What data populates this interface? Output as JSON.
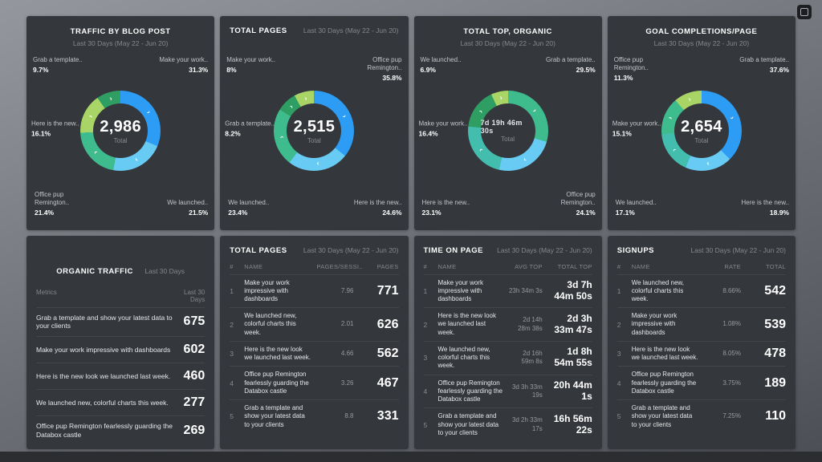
{
  "chart_data": [
    {
      "type": "pie",
      "title": "TRAFFIC BY BLOG POST",
      "subtitle": "Last 30 Days (May 22 - Jun 20)",
      "center": {
        "value": "2,986",
        "label": "Total"
      },
      "slices": [
        {
          "label": "Make your work..",
          "pct": 31.3,
          "color": "#2d9cf4"
        },
        {
          "label": "We launched..",
          "pct": 21.5,
          "color": "#68cbf3"
        },
        {
          "label": "Office pup Remington..",
          "pct": 21.4,
          "color": "#3fbc8e"
        },
        {
          "label": "Here is the new..",
          "pct": 16.1,
          "color": "#a8d566"
        },
        {
          "label": "Grab a template..",
          "pct": 9.7,
          "color": "#2f9e62"
        }
      ],
      "callouts": {
        "tl": {
          "name": "Grab a template..",
          "pct": "9.7%"
        },
        "tr": {
          "name": "Make your work..",
          "pct": "31.3%"
        },
        "l": {
          "name": "Here is the new..",
          "pct": "16.1%"
        },
        "bl": {
          "name": "Office pup Remington..",
          "pct": "21.4%"
        },
        "br": {
          "name": "We launched..",
          "pct": "21.5%"
        }
      }
    },
    {
      "type": "pie",
      "title": "TOTAL PAGES",
      "subtitle": "Last 30 Days (May 22 - Jun 20)",
      "center": {
        "value": "2,515",
        "label": "Total"
      },
      "slices": [
        {
          "label": "Office pup Remington..",
          "pct": 35.8,
          "color": "#2d9cf4"
        },
        {
          "label": "Here is the new..",
          "pct": 24.6,
          "color": "#68cbf3"
        },
        {
          "label": "We launched..",
          "pct": 23.4,
          "color": "#3fbc8e"
        },
        {
          "label": "Grab a template..",
          "pct": 8.2,
          "color": "#2f9e62"
        },
        {
          "label": "Make your work..",
          "pct": 8,
          "color": "#a8d566"
        }
      ],
      "callouts": {
        "tl": {
          "name": "Make your work..",
          "pct": "8%"
        },
        "tr": {
          "name": "Office pup Remington..",
          "pct": "35.8%"
        },
        "l": {
          "name": "Grab a template..",
          "pct": "8.2%"
        },
        "bl": {
          "name": "We launched..",
          "pct": "23.4%"
        },
        "br": {
          "name": "Here is the new..",
          "pct": "24.6%"
        }
      }
    },
    {
      "type": "pie",
      "title": "TOTAL TOP, ORGANIC",
      "subtitle": "Last 30 Days (May 22 - Jun 20)",
      "center": {
        "value": "7d 19h 46m 30s",
        "label": "Total"
      },
      "slices": [
        {
          "label": "Grab a template..",
          "pct": 29.5,
          "color": "#3fbc8e"
        },
        {
          "label": "Office pup Remington..",
          "pct": 24.1,
          "color": "#68cbf3"
        },
        {
          "label": "Here is the new..",
          "pct": 23.1,
          "color": "#43bdae"
        },
        {
          "label": "Make your work..",
          "pct": 16.4,
          "color": "#2f9e62"
        },
        {
          "label": "We launched..",
          "pct": 6.9,
          "color": "#a8d566"
        }
      ],
      "callouts": {
        "tl": {
          "name": "We launched..",
          "pct": "6.9%"
        },
        "tr": {
          "name": "Grab a template..",
          "pct": "29.5%"
        },
        "l": {
          "name": "Make your work..",
          "pct": "16.4%"
        },
        "bl": {
          "name": "Here is the new..",
          "pct": "23.1%"
        },
        "br": {
          "name": "Office pup Remington..",
          "pct": "24.1%"
        }
      }
    },
    {
      "type": "pie",
      "title": "GOAL COMPLETIONS/PAGE",
      "subtitle": "Last 30 Days (May 22 - Jun 20)",
      "center": {
        "value": "2,654",
        "label": "Total"
      },
      "slices": [
        {
          "label": "Grab a template..",
          "pct": 37.6,
          "color": "#2d9cf4"
        },
        {
          "label": "Here is the new..",
          "pct": 18.9,
          "color": "#68cbf3"
        },
        {
          "label": "We launched..",
          "pct": 17.1,
          "color": "#43bdae"
        },
        {
          "label": "Make your work..",
          "pct": 15.1,
          "color": "#3fbc8e"
        },
        {
          "label": "Office pup Remington..",
          "pct": 11.3,
          "color": "#a8d566"
        }
      ],
      "callouts": {
        "tl": {
          "name": "Office pup Remington..",
          "pct": "11.3%"
        },
        "tr": {
          "name": "Grab a template..",
          "pct": "37.6%"
        },
        "l": {
          "name": "Make your work..",
          "pct": "15.1%"
        },
        "bl": {
          "name": "We launched..",
          "pct": "17.1%"
        },
        "br": {
          "name": "Here is the new..",
          "pct": "18.9%"
        }
      }
    },
    {
      "type": "table",
      "title": "ORGANIC TRAFFIC",
      "subtitle": "Last 30 Days",
      "columns": [
        "Metrics",
        "Last 30 Days"
      ],
      "rows": [
        {
          "name": "Grab a template and show your latest data to your clients",
          "value": "675"
        },
        {
          "name": "Make your work impressive with dashboards",
          "value": "602"
        },
        {
          "name": "Here is the new look we launched last week.",
          "value": "460"
        },
        {
          "name": "We launched new, colorful charts this week.",
          "value": "277"
        },
        {
          "name": "Office pup Remington fearlessly guarding the Databox castle",
          "value": "269"
        }
      ]
    },
    {
      "type": "table",
      "title": "TOTAL PAGES",
      "subtitle": "Last 30 Days (May 22 - Jun 20)",
      "columns": [
        "#",
        "NAME",
        "PAGES/SESSI..",
        "PAGES"
      ],
      "rows": [
        {
          "rank": "1",
          "name": "Make your work impressive with dashboards",
          "m1": "7.96",
          "m2": "771"
        },
        {
          "rank": "2",
          "name": "We launched new, colorful charts this week.",
          "m1": "2.01",
          "m2": "626"
        },
        {
          "rank": "3",
          "name": "Here is the new look we launched last week.",
          "m1": "4.66",
          "m2": "562"
        },
        {
          "rank": "4",
          "name": "Office pup Remington fearlessly guarding the Databox castle",
          "m1": "3.26",
          "m2": "467"
        },
        {
          "rank": "5",
          "name": "Grab a template and show your latest data to your clients",
          "m1": "8.8",
          "m2": "331"
        }
      ]
    },
    {
      "type": "table",
      "title": "TIME ON PAGE",
      "subtitle": "Last 30 Days (May 22 - Jun 20)",
      "columns": [
        "#",
        "NAME",
        "AVG TOP",
        "TOTAL TOP"
      ],
      "rows": [
        {
          "rank": "1",
          "name": "Make your work impressive with dashboards",
          "m1": "23h 34m 3s",
          "m2": "3d 7h 44m 50s"
        },
        {
          "rank": "2",
          "name": "Here is the new look we launched last week.",
          "m1": "2d 14h 28m 38s",
          "m2": "2d 3h 33m 47s"
        },
        {
          "rank": "3",
          "name": "We launched new, colorful charts this week.",
          "m1": "2d 16h 59m 8s",
          "m2": "1d 8h 54m 55s"
        },
        {
          "rank": "4",
          "name": "Office pup Remington fearlessly guarding the Databox castle",
          "m1": "3d 3h 33m 19s",
          "m2": "20h 44m 1s"
        },
        {
          "rank": "5",
          "name": "Grab a template and show your latest data to your clients",
          "m1": "3d 2h 33m 17s",
          "m2": "16h 56m 22s"
        }
      ]
    },
    {
      "type": "table",
      "title": "SIGNUPS",
      "subtitle": "Last 30 Days (May 22 - Jun 20)",
      "columns": [
        "#",
        "NAME",
        "RATE",
        "TOTAL"
      ],
      "rows": [
        {
          "rank": "1",
          "name": "We launched new, colorful charts this week.",
          "m1": "8.66%",
          "m2": "542"
        },
        {
          "rank": "2",
          "name": "Make your work impressive with dashboards",
          "m1": "1.08%",
          "m2": "539"
        },
        {
          "rank": "3",
          "name": "Here is the new look we launched last week.",
          "m1": "8.05%",
          "m2": "478"
        },
        {
          "rank": "4",
          "name": "Office pup Remington fearlessly guarding the Databox castle",
          "m1": "3.75%",
          "m2": "189"
        },
        {
          "rank": "5",
          "name": "Grab a template and show your latest data to your clients",
          "m1": "7.25%",
          "m2": "110"
        }
      ]
    }
  ]
}
